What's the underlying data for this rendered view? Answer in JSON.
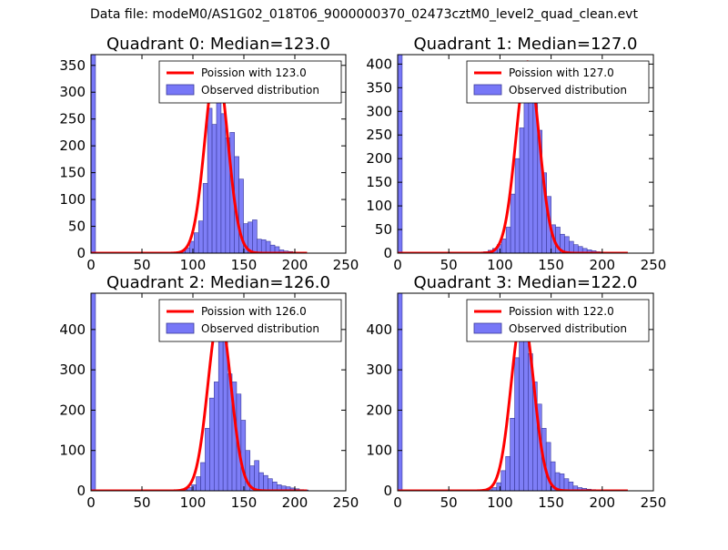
{
  "figure_title": "Data file: modeM0/AS1G02_018T06_9000000370_02473cztM0_level2_quad_clean.evt",
  "colors": {
    "hist_fill": "#7777f7",
    "hist_edge": "#3a3a9a",
    "poisson_line": "#ff0000"
  },
  "chart_data": [
    {
      "type": "bar",
      "title": "Quadrant 0: Median=123.0",
      "median": 123.0,
      "xlim": [
        0,
        250
      ],
      "ylim": [
        0,
        370
      ],
      "xticks": [
        0,
        50,
        100,
        150,
        200,
        250
      ],
      "yticks": [
        0,
        50,
        100,
        150,
        200,
        250,
        300,
        350
      ],
      "bin_width": 4.4,
      "zero_bin_count": 370,
      "histogram": [
        {
          "x": 88,
          "count": 4
        },
        {
          "x": 92.4,
          "count": 10
        },
        {
          "x": 96.8,
          "count": 22
        },
        {
          "x": 101.2,
          "count": 38
        },
        {
          "x": 105.6,
          "count": 60
        },
        {
          "x": 110,
          "count": 130
        },
        {
          "x": 114.4,
          "count": 270
        },
        {
          "x": 118.8,
          "count": 240
        },
        {
          "x": 123.2,
          "count": 310
        },
        {
          "x": 127.6,
          "count": 260
        },
        {
          "x": 132,
          "count": 215
        },
        {
          "x": 136.4,
          "count": 225
        },
        {
          "x": 140.8,
          "count": 180
        },
        {
          "x": 145.2,
          "count": 138
        },
        {
          "x": 149.6,
          "count": 55
        },
        {
          "x": 154,
          "count": 58
        },
        {
          "x": 158.4,
          "count": 62
        },
        {
          "x": 162.8,
          "count": 26
        },
        {
          "x": 167.2,
          "count": 25
        },
        {
          "x": 171.6,
          "count": 22
        },
        {
          "x": 176,
          "count": 15
        },
        {
          "x": 180.4,
          "count": 12
        },
        {
          "x": 184.8,
          "count": 6
        },
        {
          "x": 189.2,
          "count": 4
        },
        {
          "x": 193.6,
          "count": 3
        },
        {
          "x": 198,
          "count": 2
        },
        {
          "x": 202.4,
          "count": 2
        },
        {
          "x": 206.8,
          "count": 1
        }
      ],
      "poisson": {
        "lambda": 123.0,
        "peak": 355,
        "x_range": [
          0,
          212
        ]
      },
      "legend": [
        "Poission with 123.0",
        "Observed distribution"
      ],
      "legend_position": "top-right"
    },
    {
      "type": "bar",
      "title": "Quadrant 1: Median=127.0",
      "median": 127.0,
      "xlim": [
        0,
        250
      ],
      "ylim": [
        0,
        420
      ],
      "xticks": [
        0,
        50,
        100,
        150,
        200,
        250
      ],
      "yticks": [
        0,
        50,
        100,
        150,
        200,
        250,
        300,
        350,
        400
      ],
      "bin_width": 4.4,
      "zero_bin_count": 420,
      "histogram": [
        {
          "x": 84,
          "count": 3
        },
        {
          "x": 88.4,
          "count": 6
        },
        {
          "x": 92.8,
          "count": 10
        },
        {
          "x": 97.2,
          "count": 18
        },
        {
          "x": 101.6,
          "count": 30
        },
        {
          "x": 106,
          "count": 55
        },
        {
          "x": 110.4,
          "count": 125
        },
        {
          "x": 114.8,
          "count": 200
        },
        {
          "x": 119.2,
          "count": 265
        },
        {
          "x": 123.6,
          "count": 360
        },
        {
          "x": 128,
          "count": 350
        },
        {
          "x": 132.4,
          "count": 370
        },
        {
          "x": 136.8,
          "count": 260
        },
        {
          "x": 141.2,
          "count": 170
        },
        {
          "x": 145.6,
          "count": 120
        },
        {
          "x": 150,
          "count": 60
        },
        {
          "x": 154.4,
          "count": 55
        },
        {
          "x": 158.8,
          "count": 40
        },
        {
          "x": 163.2,
          "count": 35
        },
        {
          "x": 167.6,
          "count": 25
        },
        {
          "x": 172,
          "count": 18
        },
        {
          "x": 176.4,
          "count": 14
        },
        {
          "x": 180.8,
          "count": 10
        },
        {
          "x": 185.2,
          "count": 7
        },
        {
          "x": 189.6,
          "count": 5
        },
        {
          "x": 194,
          "count": 3
        },
        {
          "x": 198.4,
          "count": 2
        },
        {
          "x": 202.8,
          "count": 1
        }
      ],
      "poisson": {
        "lambda": 127.0,
        "peak": 405,
        "x_range": [
          0,
          225
        ]
      },
      "legend": [
        "Poission with 127.0",
        "Observed distribution"
      ],
      "legend_position": "top-right"
    },
    {
      "type": "bar",
      "title": "Quadrant 2: Median=126.0",
      "median": 126.0,
      "xlim": [
        0,
        250
      ],
      "ylim": [
        0,
        490
      ],
      "xticks": [
        0,
        50,
        100,
        150,
        200,
        250
      ],
      "yticks": [
        0,
        100,
        200,
        300,
        400
      ],
      "bin_width": 4.4,
      "zero_bin_count": 490,
      "histogram": [
        {
          "x": 90,
          "count": 3
        },
        {
          "x": 94.4,
          "count": 8
        },
        {
          "x": 98.8,
          "count": 15
        },
        {
          "x": 103.2,
          "count": 35
        },
        {
          "x": 107.6,
          "count": 70
        },
        {
          "x": 112,
          "count": 155
        },
        {
          "x": 116.4,
          "count": 230
        },
        {
          "x": 120.8,
          "count": 270
        },
        {
          "x": 125.2,
          "count": 390
        },
        {
          "x": 129.6,
          "count": 410
        },
        {
          "x": 134,
          "count": 290
        },
        {
          "x": 138.4,
          "count": 270
        },
        {
          "x": 142.8,
          "count": 240
        },
        {
          "x": 147.2,
          "count": 175
        },
        {
          "x": 151.6,
          "count": 100
        },
        {
          "x": 156,
          "count": 62
        },
        {
          "x": 160.4,
          "count": 75
        },
        {
          "x": 164.8,
          "count": 45
        },
        {
          "x": 169.2,
          "count": 38
        },
        {
          "x": 173.6,
          "count": 30
        },
        {
          "x": 178,
          "count": 22
        },
        {
          "x": 182.4,
          "count": 15
        },
        {
          "x": 186.8,
          "count": 12
        },
        {
          "x": 191.2,
          "count": 10
        },
        {
          "x": 195.6,
          "count": 7
        },
        {
          "x": 200,
          "count": 5
        },
        {
          "x": 204.4,
          "count": 3
        },
        {
          "x": 208.8,
          "count": 2
        }
      ],
      "poisson": {
        "lambda": 126.0,
        "peak": 438,
        "x_range": [
          0,
          212
        ]
      },
      "legend": [
        "Poission with 126.0",
        "Observed distribution"
      ],
      "legend_position": "top-right"
    },
    {
      "type": "bar",
      "title": "Quadrant 3: Median=122.0",
      "median": 122.0,
      "xlim": [
        0,
        250
      ],
      "ylim": [
        0,
        490
      ],
      "xticks": [
        0,
        50,
        100,
        150,
        200,
        250
      ],
      "yticks": [
        0,
        100,
        200,
        300,
        400
      ],
      "bin_width": 4.4,
      "zero_bin_count": 490,
      "histogram": [
        {
          "x": 88,
          "count": 3
        },
        {
          "x": 92.4,
          "count": 8
        },
        {
          "x": 96.8,
          "count": 20
        },
        {
          "x": 101.2,
          "count": 50
        },
        {
          "x": 105.6,
          "count": 85
        },
        {
          "x": 110,
          "count": 180
        },
        {
          "x": 114.4,
          "count": 330
        },
        {
          "x": 118.8,
          "count": 400
        },
        {
          "x": 123.2,
          "count": 420
        },
        {
          "x": 127.6,
          "count": 340
        },
        {
          "x": 132,
          "count": 270
        },
        {
          "x": 136.4,
          "count": 215
        },
        {
          "x": 140.8,
          "count": 155
        },
        {
          "x": 145.2,
          "count": 120
        },
        {
          "x": 149.6,
          "count": 72
        },
        {
          "x": 154,
          "count": 45
        },
        {
          "x": 158.4,
          "count": 42
        },
        {
          "x": 162.8,
          "count": 30
        },
        {
          "x": 167.2,
          "count": 22
        },
        {
          "x": 171.6,
          "count": 12
        },
        {
          "x": 176,
          "count": 8
        },
        {
          "x": 180.4,
          "count": 6
        },
        {
          "x": 184.8,
          "count": 4
        },
        {
          "x": 189.2,
          "count": 3
        },
        {
          "x": 193.6,
          "count": 2
        },
        {
          "x": 198,
          "count": 1
        }
      ],
      "poisson": {
        "lambda": 122.0,
        "peak": 438,
        "x_range": [
          0,
          225
        ]
      },
      "legend": [
        "Poission with 122.0",
        "Observed distribution"
      ],
      "legend_position": "top-right"
    }
  ]
}
